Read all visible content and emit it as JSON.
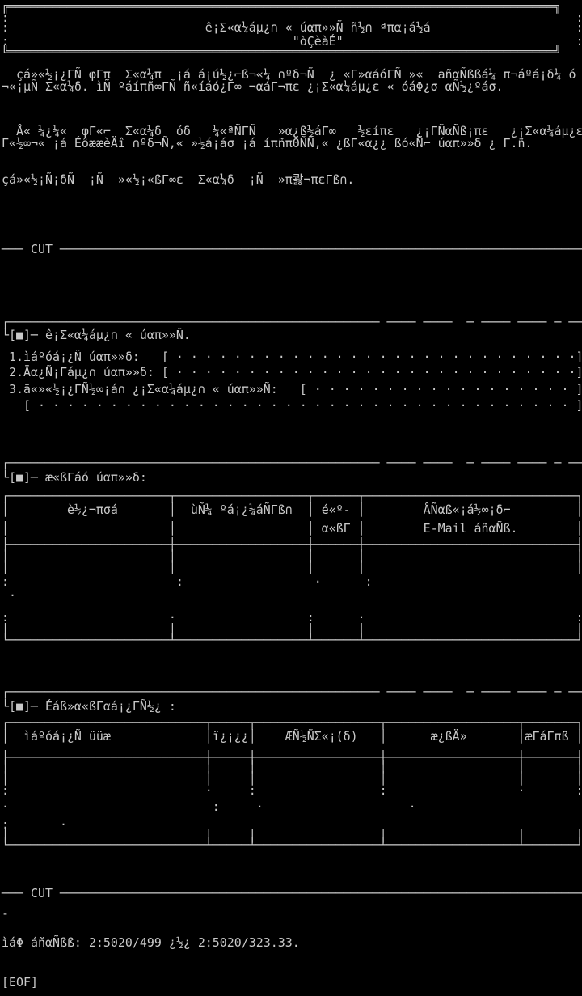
{
  "colors": {
    "background": "#000000",
    "foreground": "#c9c9c9"
  },
  "rows": [
    {
      "name": "title-box-border-top",
      "text": "╔═══════════════════════════════════════════════════════════════════════════╗"
    },
    {
      "name": "title-box-interior-blank",
      "text": ":                                                                              :"
    },
    {
      "name": "title-box-heading-line1",
      "text": ":                           ê¡Σ«α¼áµ¿∩ « úαπ»»Ñ ñ½∩ ªπα¡á½á                    :"
    },
    {
      "name": "title-box-heading-line2",
      "text": ":                                       \"òÇèàÉ\"                                :"
    },
    {
      "name": "title-box-border-bottom",
      "text": "╚═══════════════════════════════════════════════════════════════════════════╝"
    },
    {
      "name": "intro-paragraph-1-line-1",
      "text": "  çá»«½¡¿ΓÑ φΓπ  Σ«α¼π  ¡á á¡ú½¿⌐ß¬«¼ ∩ºδ¬Ñ  ¿ «Γ»αáóΓÑ »«  añαÑßßá¼ π¬áºá¡δ¼ ó"
    },
    {
      "name": "intro-paragraph-1-line-2",
      "text": "¬«¡µÑ Σ«α¼δ. ìÑ ºáíπñ∞ΓÑ ñ«íáó¿Γ∞ ¬αáΓ¬πε ¿¡Σ«α¼áµ¿ε « óáΦ¿σ αÑ½¿ºáσ."
    },
    {
      "name": "intro-paragraph-2-line-1",
      "text": "  Å« ¼¿¼«  φΓ«⌐  Σ«α¼δ  óδ   ¼«ªÑΓÑ   »α¿ß½áΓ∞   ½εíπε   ¿¡ΓÑαÑß¡πε   ¿¡Σ«α¼áµ¿ε"
    },
    {
      "name": "intro-paragraph-2-line-2",
      "text": "Γ«½∞¬« ¡á ÉôææèÄî ∩ºδ¬Ñ,« »½á¡áσ ¡á íπñπΘÑÑ,« ¿ßΓ«α¿¿ ßó«Ñ⌐ úαπ»»δ ¿ Γ.ñ."
    },
    {
      "name": "intro-paragraph-3",
      "text": "çá»«½¡Ñ¡δÑ  ¡Ñ  »«½¡«ßΓ∞ε  Σ«α¼δ  ¡Ñ  »π콿¬πεΓß∩."
    },
    {
      "name": "cut-separator-top",
      "text": "─── CUT ────────────────────────────────────────────────────────────────────────"
    },
    {
      "name": "section-group-info-topline",
      "text": "┌─────────────────────────────────────────────────── ──── ────  ─ ──── ──── ─ ──"
    },
    {
      "name": "section-group-info-header",
      "text": "└[■]─ ê¡Σ«α¼áµ¿∩ « úαπ»»Ñ."
    },
    {
      "name": "field-group-name",
      "text": " 1.ìáºóá¡¿Ñ úαπ»»δ:   [ · · · · · · · · · · · · · · · · · · · · · · · · · · · ·]"
    },
    {
      "name": "field-group-orientation",
      "text": " 2.Äα¿Ñ¡Γáµ¿∩ úαπ»»δ: [ · · · · · · · · · · · · · · · · · · · · · · · · · · · ·]"
    },
    {
      "name": "field-group-extra-info",
      "text": " 3.ä«»«½¡¿ΓÑ½∞¡á∩ ¿¡Σ«α¼áµ¿∩ « úαπ»»Ñ:   [ · · · · · · · · · · · · · · · · · · ]"
    },
    {
      "name": "field-group-extra-info-continued",
      "text": "   [ · · · · · · · · · · · · · · · · · · · · · · · · · · · · · · · · · · · · · ]"
    },
    {
      "name": "section-members-topline",
      "text": "┌─────────────────────────────────────────────────── ──── ────  ─ ──── ──── ─ ──"
    },
    {
      "name": "section-members-header",
      "text": "└[■]─ æ«ßΓáó úαπ»»δ:"
    },
    {
      "name": "members-table-border-top",
      "text": "┌──────────────────────┬──────────────────┬──────┬─────────────────────────────┐"
    },
    {
      "name": "members-table-header-line1",
      "text": "│        è½¿¬πσá       │  ùÑ¼ ºá¡¿¼áÑΓß∩  │ é«º- │        ÅÑαß«¡á½∞¡δ⌐         │"
    },
    {
      "name": "members-table-header-line2",
      "text": "│                      │                  │ α«ßΓ │        E-Mail áñαÑß.        │"
    },
    {
      "name": "members-table-header-separator",
      "text": "├──────────────────────┼──────────────────┼──────┼─────────────────────────────┤"
    },
    {
      "name": "members-table-body-line1",
      "text": "│                      │                  │      │                             │"
    },
    {
      "name": "members-table-body-line2",
      "text": "│                      │                  │      │                             │"
    },
    {
      "name": "members-table-body-line3",
      "text": ":                       :                  ·      :"
    },
    {
      "name": "members-table-body-line4",
      "text": " ·"
    },
    {
      "name": "members-table-body-line5",
      "text": ":                      ·                  :      ·                             :"
    },
    {
      "name": "members-table-body-line6",
      "text": "│                      │                  │      │                             │"
    },
    {
      "name": "members-table-border-bottom",
      "text": "└──────────────────────┴──────────────────┴──────┴─────────────────────────────┘"
    },
    {
      "name": "section-distributors-topline",
      "text": "┌─────────────────────────────────────────────────── ──── ────  ─ ──── ──── ─ ──"
    },
    {
      "name": "section-distributors-header",
      "text": "└[■]─ Éáß»α«ßΓαá¡¿ΓÑ½¿ :"
    },
    {
      "name": "bbs-table-border-top",
      "text": "┌───────────────────────────┬─────┬─────────────────┬──────────────────┬───────┐"
    },
    {
      "name": "bbs-table-header",
      "text": "│  ìáºóá¡¿Ñ üüæ             │ï¿¡¿¿│    ÆÑ½ÑΣ«¡(δ)   │      æ¿ßÄ»       │æΓáΓπß │"
    },
    {
      "name": "bbs-table-header-separator",
      "text": "├───────────────────────────┼─────┼─────────────────┼──────────────────┼───────┤"
    },
    {
      "name": "bbs-table-body-line1",
      "text": "│                           │     │                 │                  │       │"
    },
    {
      "name": "bbs-table-body-line2",
      "text": "│                           │     │                 │                  │       │"
    },
    {
      "name": "bbs-table-body-line3",
      "text": ":                           ·     :                 :                  ·       :"
    },
    {
      "name": "bbs-table-body-line4",
      "text": "·                            :     ·                    ·"
    },
    {
      "name": "bbs-table-body-line5",
      "text": ":       ·"
    },
    {
      "name": "bbs-table-body-line6",
      "text": "│                           │     │                 │                  │       │"
    },
    {
      "name": "bbs-table-border-bottom",
      "text": "└───────────────────────────┴─────┴─────────────────┴──────────────────┴───────┘"
    },
    {
      "name": "cut-separator-bottom",
      "text": "─── CUT ────────────────────────────────────────────────────────────────────────"
    },
    {
      "name": "stray-dash",
      "text": "-"
    },
    {
      "name": "footer-address",
      "text": "ìáΦ áñαÑßß: 2:5020/499 ¿½¿ 2:5020/323.33."
    },
    {
      "name": "eof-marker",
      "text": "[EOF]"
    }
  ]
}
